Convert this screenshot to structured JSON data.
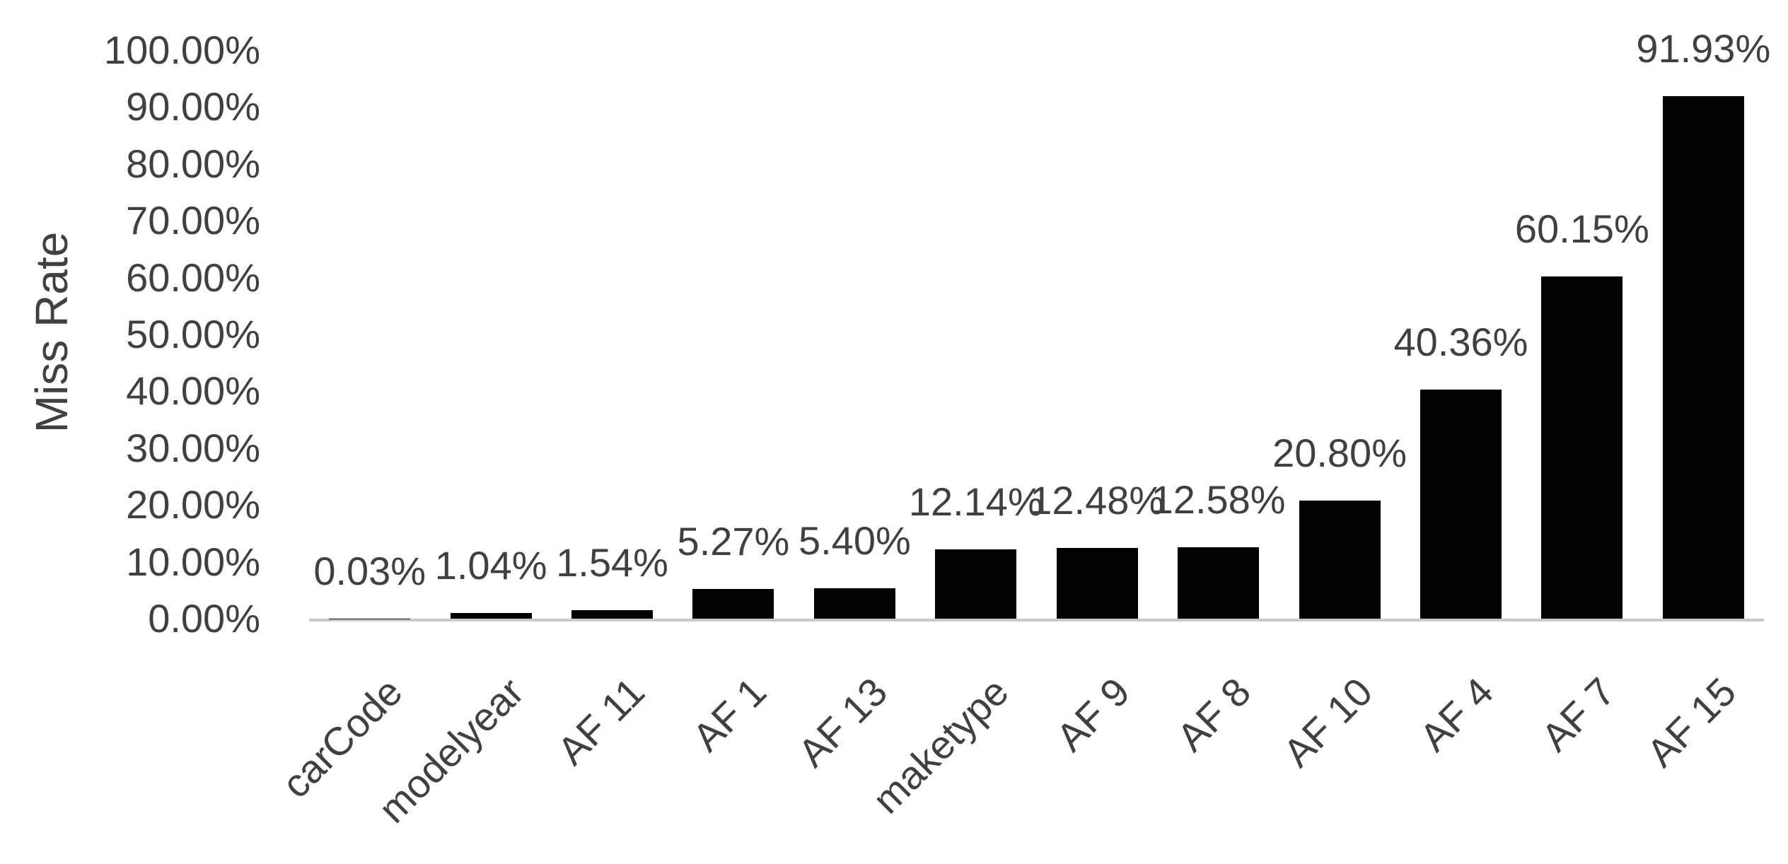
{
  "chart_data": {
    "type": "bar",
    "title": "",
    "xlabel": "",
    "ylabel": "Miss Rate",
    "ylim": [
      0,
      100
    ],
    "grid": false,
    "legend": false,
    "yticks": [
      "100.00%",
      "90.00%",
      "80.00%",
      "70.00%",
      "60.00%",
      "50.00%",
      "40.00%",
      "30.00%",
      "20.00%",
      "10.00%",
      "0.00%"
    ],
    "categories": [
      "carCode",
      "modelyear",
      "AF 11",
      "AF 1",
      "AF 13",
      "maketype",
      "AF 9",
      "AF 8",
      "AF 10",
      "AF 4",
      "AF 7",
      "AF 15"
    ],
    "values": [
      0.03,
      1.04,
      1.54,
      5.27,
      5.4,
      12.14,
      12.48,
      12.58,
      20.8,
      40.36,
      60.15,
      91.93
    ],
    "data_labels": [
      "0.03%",
      "1.04%",
      "1.54%",
      "5.27%",
      "5.40%",
      "12.14%",
      "12.48%",
      "12.58%",
      "20.80%",
      "40.36%",
      "60.15%",
      "91.93%"
    ],
    "colors": {
      "bar": "#020202",
      "text": "#404040",
      "axis_line": "#c9c9c9",
      "background": "#ffffff"
    }
  }
}
